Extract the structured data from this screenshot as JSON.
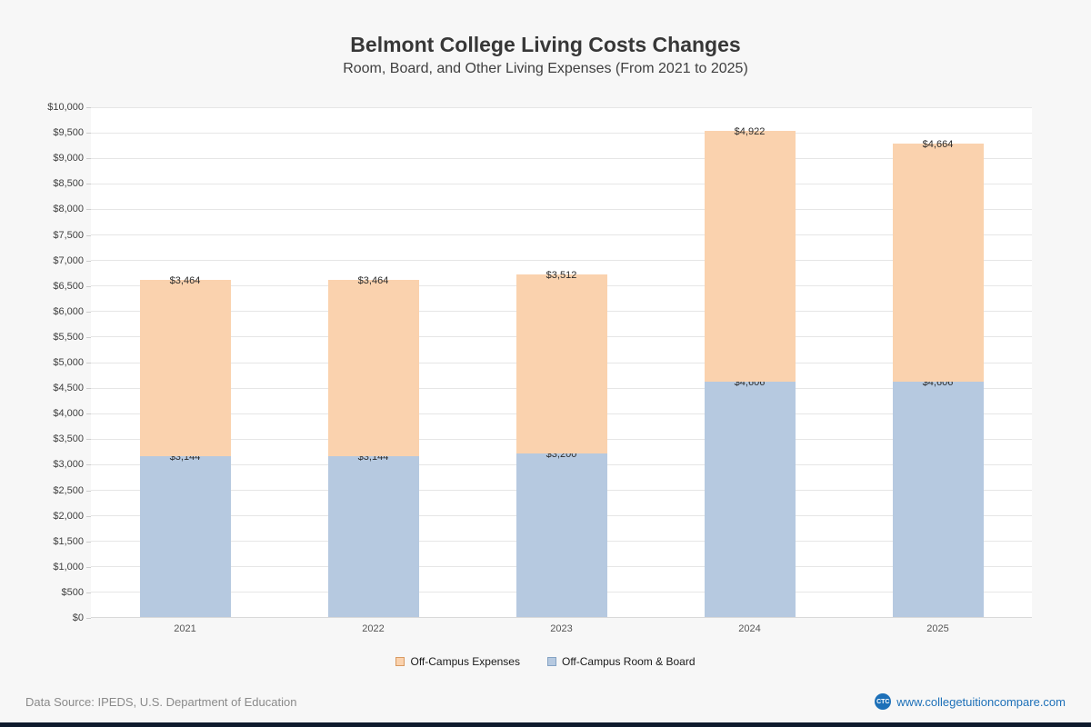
{
  "page": {
    "title": "Belmont College Living Costs Changes",
    "subtitle": "Room, Board, and Other Living Expenses (From 2021 to 2025)"
  },
  "chart_data": {
    "type": "bar",
    "stacked": true,
    "title": "Belmont College Living Costs Changes",
    "subtitle": "Room, Board, and Other Living Expenses (From 2021 to 2025)",
    "categories": [
      "2021",
      "2022",
      "2023",
      "2024",
      "2025"
    ],
    "series": [
      {
        "name": "Off-Campus Room & Board",
        "slug": "off-campus-room-board",
        "color": "#b6c9e0",
        "values": [
          3144,
          3144,
          3200,
          4606,
          4606
        ],
        "labels": [
          "$3,144",
          "$3,144",
          "$3,200",
          "$4,606",
          "$4,606"
        ]
      },
      {
        "name": "Off-Campus Expenses",
        "slug": "off-campus-expenses",
        "color": "#fad2ae",
        "values": [
          3464,
          3464,
          3512,
          4922,
          4664
        ],
        "labels": [
          "$3,464",
          "$3,464",
          "$3,512",
          "$4,922",
          "$4,664"
        ]
      }
    ],
    "totals": [
      6608,
      6608,
      6712,
      9528,
      9270
    ],
    "xlabel": "",
    "ylabel": "",
    "ylim": [
      0,
      10000
    ],
    "ytick_step": 500,
    "ytick_labels": [
      "$0",
      "$500",
      "$1,000",
      "$1,500",
      "$2,000",
      "$2,500",
      "$3,000",
      "$3,500",
      "$4,000",
      "$4,500",
      "$5,000",
      "$5,500",
      "$6,000",
      "$6,500",
      "$7,000",
      "$7,500",
      "$8,000",
      "$8,500",
      "$9,000",
      "$9,500",
      "$10,000"
    ],
    "grid": true,
    "legend_position": "bottom"
  },
  "legend": {
    "items": [
      {
        "label": "Off-Campus Expenses",
        "slug": "off-campus-expenses",
        "color": "#fad2ae",
        "border": "#d99a62"
      },
      {
        "label": "Off-Campus Room & Board",
        "slug": "off-campus-room-board",
        "color": "#b6c9e0",
        "border": "#85a3c4"
      }
    ]
  },
  "footer": {
    "source": "Data Source: IPEDS, U.S. Department of Education",
    "logo_text": "CTC",
    "website": "www.collegetuitioncompare.com",
    "link_color": "#1d70b8"
  }
}
